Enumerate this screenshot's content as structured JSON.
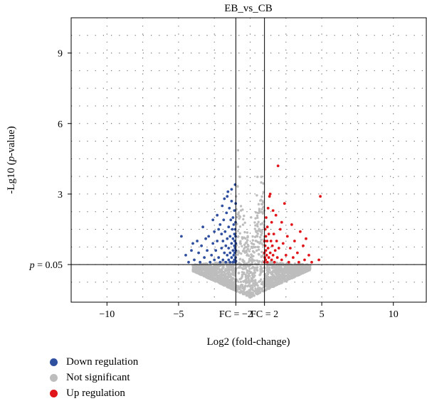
{
  "chart_data": {
    "type": "scatter",
    "title": "EB_vs_CB",
    "xlabel": "Log2 (fold-change)",
    "ylabel_prefix": "-Lg10 (",
    "ylabel_italic": "p",
    "ylabel_suffix": "-value)",
    "xlim": [
      -12.5,
      12.3
    ],
    "ylim": [
      -1.6,
      10.5
    ],
    "x_ticks": [
      -10,
      -5,
      5,
      10
    ],
    "y_ticks": [
      3,
      6,
      9
    ],
    "grid": true,
    "thresholds": {
      "fc_left": {
        "x": -1,
        "label": "FC = −2"
      },
      "fc_right": {
        "x": 1,
        "label": "FC = 2"
      },
      "p_line": {
        "y": 0,
        "label_italic": "p",
        "label_rest": " = 0.05"
      }
    },
    "colors": {
      "down": "#2f4f9f",
      "ns": "#bdbdbd",
      "up": "#e0161b"
    },
    "legend": {
      "placement": "bottom-left",
      "items": [
        {
          "key": "down",
          "label": "Down regulation"
        },
        {
          "key": "ns",
          "label": "Not significant"
        },
        {
          "key": "up",
          "label": "Up regulation"
        }
      ]
    },
    "series": [
      {
        "key": "down",
        "name": "Down regulation",
        "points": [
          [
            -4.8,
            1.2
          ],
          [
            -4.5,
            0.4
          ],
          [
            -4.3,
            0.1
          ],
          [
            -4.1,
            0.6
          ],
          [
            -4.0,
            0.9
          ],
          [
            -3.9,
            0.2
          ],
          [
            -3.7,
            1.0
          ],
          [
            -3.6,
            0.5
          ],
          [
            -3.5,
            0.1
          ],
          [
            -3.4,
            0.8
          ],
          [
            -3.3,
            1.6
          ],
          [
            -3.2,
            0.3
          ],
          [
            -3.0,
            0.6
          ],
          [
            -2.9,
            1.2
          ],
          [
            -2.8,
            0.1
          ],
          [
            -2.7,
            0.4
          ],
          [
            -2.6,
            0.9
          ],
          [
            -2.5,
            1.4
          ],
          [
            -2.5,
            0.2
          ],
          [
            -2.4,
            0.6
          ],
          [
            -2.3,
            2.1
          ],
          [
            -2.3,
            1.0
          ],
          [
            -2.2,
            0.3
          ],
          [
            -2.1,
            1.7
          ],
          [
            -2.1,
            0.1
          ],
          [
            -2.0,
            0.7
          ],
          [
            -2.0,
            1.3
          ],
          [
            -1.95,
            2.5
          ],
          [
            -1.9,
            0.2
          ],
          [
            -1.9,
            1.0
          ],
          [
            -1.85,
            1.9
          ],
          [
            -1.8,
            0.5
          ],
          [
            -1.8,
            2.8
          ],
          [
            -1.75,
            1.4
          ],
          [
            -1.7,
            0.1
          ],
          [
            -1.7,
            0.8
          ],
          [
            -1.65,
            2.2
          ],
          [
            -1.6,
            0.4
          ],
          [
            -1.6,
            1.1
          ],
          [
            -1.55,
            3.1
          ],
          [
            -1.5,
            0.2
          ],
          [
            -1.5,
            0.7
          ],
          [
            -1.5,
            1.6
          ],
          [
            -1.45,
            2.4
          ],
          [
            -1.4,
            0.1
          ],
          [
            -1.4,
            0.5
          ],
          [
            -1.4,
            1.2
          ],
          [
            -1.35,
            1.9
          ],
          [
            -1.3,
            0.3
          ],
          [
            -1.3,
            0.9
          ],
          [
            -1.3,
            2.7
          ],
          [
            -1.25,
            1.5
          ],
          [
            -1.2,
            0.1
          ],
          [
            -1.2,
            0.6
          ],
          [
            -1.2,
            1.1
          ],
          [
            -1.2,
            2.0
          ],
          [
            -1.15,
            0.4
          ],
          [
            -1.15,
            1.7
          ],
          [
            -1.1,
            0.2
          ],
          [
            -1.1,
            0.8
          ],
          [
            -1.1,
            1.3
          ],
          [
            -1.1,
            2.3
          ],
          [
            -1.08,
            0.5
          ],
          [
            -1.08,
            1.0
          ],
          [
            -1.05,
            0.1
          ],
          [
            -1.05,
            0.7
          ],
          [
            -1.05,
            1.5
          ],
          [
            -1.05,
            3.4
          ],
          [
            -1.02,
            0.3
          ],
          [
            -1.02,
            1.2
          ],
          [
            -1.02,
            1.8
          ],
          [
            -1.01,
            0.6
          ],
          [
            -1.01,
            2.6
          ],
          [
            -1.0,
            0.9
          ],
          [
            -1.0,
            0.15
          ],
          [
            -2.6,
            1.9
          ],
          [
            -3.1,
            1.1
          ],
          [
            -2.2,
            1.5
          ],
          [
            -1.6,
            2.9
          ],
          [
            -1.3,
            3.2
          ]
        ]
      },
      {
        "key": "up",
        "name": "Up regulation",
        "points": [
          [
            1.0,
            0.1
          ],
          [
            1.0,
            0.5
          ],
          [
            1.02,
            1.0
          ],
          [
            1.03,
            0.3
          ],
          [
            1.05,
            1.5
          ],
          [
            1.05,
            0.8
          ],
          [
            1.08,
            0.2
          ],
          [
            1.1,
            1.2
          ],
          [
            1.1,
            0.6
          ],
          [
            1.12,
            2.0
          ],
          [
            1.15,
            0.4
          ],
          [
            1.18,
            1.0
          ],
          [
            1.2,
            0.1
          ],
          [
            1.2,
            1.6
          ],
          [
            1.25,
            0.7
          ],
          [
            1.3,
            0.3
          ],
          [
            1.3,
            1.3
          ],
          [
            1.35,
            2.9
          ],
          [
            1.4,
            0.5
          ],
          [
            1.45,
            1.0
          ],
          [
            1.5,
            0.2
          ],
          [
            1.5,
            1.8
          ],
          [
            1.55,
            0.8
          ],
          [
            1.6,
            0.4
          ],
          [
            1.65,
            1.3
          ],
          [
            1.7,
            0.1
          ],
          [
            1.75,
            0.6
          ],
          [
            1.8,
            2.1
          ],
          [
            1.85,
            1.0
          ],
          [
            1.9,
            0.3
          ],
          [
            1.95,
            4.2
          ],
          [
            2.0,
            0.7
          ],
          [
            2.1,
            1.5
          ],
          [
            2.2,
            0.2
          ],
          [
            2.3,
            0.9
          ],
          [
            2.4,
            2.6
          ],
          [
            2.5,
            0.4
          ],
          [
            2.6,
            1.2
          ],
          [
            2.7,
            0.1
          ],
          [
            2.8,
            0.7
          ],
          [
            2.9,
            1.7
          ],
          [
            3.0,
            0.3
          ],
          [
            3.1,
            1.0
          ],
          [
            3.3,
            0.5
          ],
          [
            3.4,
            0.1
          ],
          [
            3.5,
            1.4
          ],
          [
            3.7,
            0.8
          ],
          [
            3.8,
            0.2
          ],
          [
            3.9,
            1.1
          ],
          [
            4.1,
            0.4
          ],
          [
            4.3,
            0.1
          ],
          [
            4.8,
            0.2
          ],
          [
            4.9,
            2.9
          ],
          [
            1.25,
            2.4
          ],
          [
            1.6,
            2.3
          ],
          [
            2.2,
            1.8
          ],
          [
            1.4,
            3.0
          ]
        ]
      }
    ],
    "not_significant": {
      "x_range": [
        -4.0,
        4.2
      ],
      "y_min": -1.4
    }
  }
}
